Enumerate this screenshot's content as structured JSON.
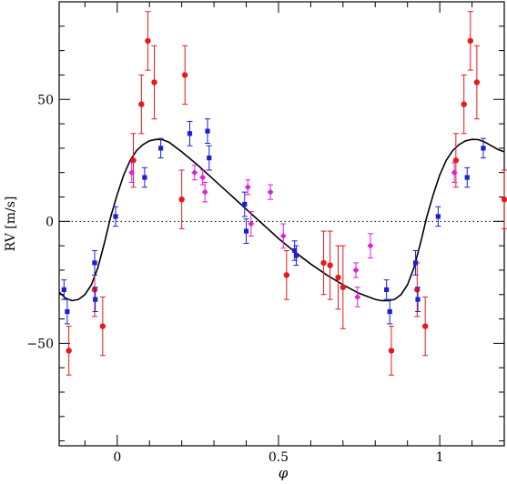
{
  "chart_data": {
    "type": "scatter",
    "title": "",
    "xlabel": "φ",
    "ylabel": "RV [m/s]",
    "xlim": [
      -0.18,
      1.2
    ],
    "ylim": [
      -92,
      90
    ],
    "xticks": [
      0,
      0.5,
      1
    ],
    "xtick_labels": [
      "0",
      "0.5",
      "1"
    ],
    "yticks": [
      -50,
      0,
      50
    ],
    "ytick_labels": [
      "−50",
      "0",
      "50"
    ],
    "zero_line": "dotted",
    "grid": false,
    "legend": "none",
    "colors": {
      "red": "#e8191b",
      "blue": "#1c1fd6",
      "magenta": "#e21be0",
      "model": "#000000"
    },
    "series": [
      {
        "color": "red",
        "marker": "circle",
        "points": [
          {
            "x": -0.15,
            "y": -53,
            "err": 10
          },
          {
            "x": -0.07,
            "y": -28,
            "err": 11
          },
          {
            "x": -0.045,
            "y": -43,
            "err": 12
          },
          {
            "x": 0.05,
            "y": 25,
            "err": 11
          },
          {
            "x": 0.075,
            "y": 48,
            "err": 12
          },
          {
            "x": 0.095,
            "y": 74,
            "err": 12
          },
          {
            "x": 0.115,
            "y": 57,
            "err": 15
          },
          {
            "x": 0.2,
            "y": 9,
            "err": 12
          },
          {
            "x": 0.21,
            "y": 60,
            "err": 12
          },
          {
            "x": 0.525,
            "y": -22,
            "err": 10
          },
          {
            "x": 0.64,
            "y": -17,
            "err": 13
          },
          {
            "x": 0.66,
            "y": -18,
            "err": 14
          },
          {
            "x": 0.685,
            "y": -23,
            "err": 13
          },
          {
            "x": 0.7,
            "y": -27,
            "err": 17
          },
          {
            "x": 0.93,
            "y": -28,
            "err": 11
          },
          {
            "x": 0.955,
            "y": -43,
            "err": 12
          },
          {
            "x": 1.05,
            "y": 25,
            "err": 11
          },
          {
            "x": 1.075,
            "y": 48,
            "err": 12
          },
          {
            "x": 1.095,
            "y": 74,
            "err": 12
          },
          {
            "x": 1.115,
            "y": 57,
            "err": 15
          },
          {
            "x": 0.85,
            "y": -53,
            "err": 10
          },
          {
            "x": 1.2,
            "y": 9,
            "err": 12
          }
        ]
      },
      {
        "color": "blue",
        "marker": "square",
        "points": [
          {
            "x": -0.165,
            "y": -28,
            "err": 4
          },
          {
            "x": -0.155,
            "y": -37,
            "err": 5
          },
          {
            "x": -0.07,
            "y": -17,
            "err": 5
          },
          {
            "x": -0.068,
            "y": -32,
            "err": 5
          },
          {
            "x": -0.005,
            "y": 2,
            "err": 4
          },
          {
            "x": 0.085,
            "y": 18,
            "err": 4
          },
          {
            "x": 0.135,
            "y": 30,
            "err": 4
          },
          {
            "x": 0.225,
            "y": 36,
            "err": 5
          },
          {
            "x": 0.28,
            "y": 37,
            "err": 5
          },
          {
            "x": 0.285,
            "y": 26,
            "err": 5
          },
          {
            "x": 0.395,
            "y": 7,
            "err": 5
          },
          {
            "x": 0.4,
            "y": -4,
            "err": 5
          },
          {
            "x": 0.55,
            "y": -12,
            "err": 4
          },
          {
            "x": 0.555,
            "y": -14,
            "err": 4
          },
          {
            "x": 0.835,
            "y": -28,
            "err": 4
          },
          {
            "x": 0.845,
            "y": -37,
            "err": 5
          },
          {
            "x": 0.925,
            "y": -17,
            "err": 5
          },
          {
            "x": 0.932,
            "y": -32,
            "err": 5
          },
          {
            "x": 0.995,
            "y": 2,
            "err": 4
          },
          {
            "x": 1.085,
            "y": 18,
            "err": 4
          },
          {
            "x": 1.135,
            "y": 30,
            "err": 4
          }
        ]
      },
      {
        "color": "magenta",
        "marker": "diamond",
        "points": [
          {
            "x": 0.045,
            "y": 20,
            "err": 4
          },
          {
            "x": 0.24,
            "y": 20,
            "err": 3
          },
          {
            "x": 0.265,
            "y": 18,
            "err": 3
          },
          {
            "x": 0.272,
            "y": 12,
            "err": 4
          },
          {
            "x": 0.405,
            "y": 14,
            "err": 3
          },
          {
            "x": 0.415,
            "y": -1,
            "err": 5
          },
          {
            "x": 0.475,
            "y": 12,
            "err": 3
          },
          {
            "x": 0.515,
            "y": -6,
            "err": 5
          },
          {
            "x": 0.74,
            "y": -20,
            "err": 3
          },
          {
            "x": 0.745,
            "y": -31,
            "err": 4
          },
          {
            "x": 0.785,
            "y": -10,
            "err": 5
          },
          {
            "x": 1.045,
            "y": 20,
            "err": 4
          }
        ]
      }
    ],
    "model_curve": {
      "color": "model",
      "x": [
        -0.18,
        -0.16,
        -0.14,
        -0.12,
        -0.1,
        -0.08,
        -0.06,
        -0.04,
        -0.02,
        0,
        0.02,
        0.04,
        0.06,
        0.08,
        0.1,
        0.12,
        0.14,
        0.16,
        0.2,
        0.25,
        0.3,
        0.35,
        0.4,
        0.45,
        0.5,
        0.55,
        0.6,
        0.65,
        0.7,
        0.75,
        0.8,
        0.82,
        0.84,
        0.86,
        0.88,
        0.9,
        0.92,
        0.94,
        0.96,
        0.98,
        1,
        1.02,
        1.04,
        1.06,
        1.08,
        1.1,
        1.12,
        1.14,
        1.16,
        1.18,
        1.2
      ],
      "y": [
        -29,
        -31.5,
        -32.5,
        -32,
        -30,
        -26,
        -19,
        -9,
        2,
        11,
        19,
        25,
        29,
        31.5,
        33,
        33.6,
        33.5,
        32.5,
        28.5,
        23,
        17,
        11,
        5,
        -1,
        -7,
        -12.5,
        -17.5,
        -22,
        -26,
        -29.5,
        -32,
        -32.5,
        -32.5,
        -32,
        -30,
        -26,
        -19,
        -9,
        2,
        11,
        19,
        25,
        29,
        31.5,
        33,
        33.6,
        33.5,
        32.5,
        31,
        29.5,
        28.5
      ]
    }
  }
}
